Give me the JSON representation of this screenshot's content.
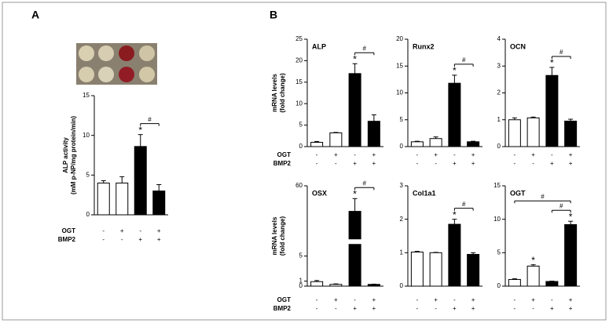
{
  "panel_labels": [
    "A",
    "B"
  ],
  "chart_data": [
    {
      "type": "bar",
      "ylabel": [
        "ALP activity",
        "(mM p-NP/mg protein/min)"
      ],
      "ylim": [
        0,
        15
      ],
      "yticks": [
        0,
        5,
        10,
        15
      ],
      "values": [
        4.0,
        4.0,
        8.6,
        3.0
      ],
      "errors": [
        0.3,
        0.8,
        1.5,
        0.8
      ],
      "colors": [
        "#ffffff",
        "#ffffff",
        "#000000",
        "#000000"
      ],
      "star_labels": [
        null,
        null,
        "*",
        null
      ],
      "brackets": [
        {
          "label": "#",
          "from": 2,
          "to": 3
        }
      ],
      "rows": [
        {
          "name": "OGT",
          "values": [
            "-",
            "+",
            "-",
            "+"
          ]
        },
        {
          "name": "BMP2",
          "values": [
            "-",
            "-",
            "+",
            "+"
          ]
        }
      ]
    },
    {
      "type": "bar",
      "title": "ALP",
      "ylabel": [
        "mRNA levels",
        "(fold change)"
      ],
      "ylim": [
        0,
        25
      ],
      "yticks": [
        0,
        5,
        10,
        15,
        20,
        25
      ],
      "values": [
        1.0,
        3.2,
        17.0,
        5.9
      ],
      "errors": [
        0.2,
        0.1,
        2.3,
        1.5
      ],
      "colors": [
        "#ffffff",
        "#ffffff",
        "#000000",
        "#000000"
      ],
      "star_labels": [
        null,
        null,
        "*",
        null
      ],
      "brackets": [
        {
          "label": "#",
          "from": 2,
          "to": 3
        }
      ],
      "rows": [
        {
          "name": "OGT",
          "values": [
            "-",
            "+",
            "-",
            "+"
          ]
        },
        {
          "name": "BMP2",
          "values": [
            "-",
            "-",
            "+",
            "+"
          ]
        }
      ]
    },
    {
      "type": "bar",
      "title": "Runx2",
      "ylim": [
        0,
        20
      ],
      "yticks": [
        0,
        5,
        10,
        15,
        20
      ],
      "values": [
        0.9,
        1.5,
        11.8,
        0.9
      ],
      "errors": [
        0.1,
        0.3,
        1.5,
        0.1
      ],
      "colors": [
        "#ffffff",
        "#ffffff",
        "#000000",
        "#000000"
      ],
      "star_labels": [
        null,
        null,
        "*",
        null
      ],
      "brackets": [
        {
          "label": "#",
          "from": 2,
          "to": 3
        }
      ],
      "rows": [
        {
          "values": [
            "-",
            "+",
            "-",
            "+"
          ]
        },
        {
          "values": [
            "-",
            "-",
            "+",
            "+"
          ]
        }
      ]
    },
    {
      "type": "bar",
      "title": "OCN",
      "ylim": [
        0,
        4
      ],
      "yticks": [
        0,
        1,
        2,
        3,
        4
      ],
      "values": [
        1.0,
        1.07,
        2.65,
        0.95
      ],
      "errors": [
        0.07,
        0.03,
        0.3,
        0.07
      ],
      "colors": [
        "#ffffff",
        "#ffffff",
        "#000000",
        "#000000"
      ],
      "star_labels": [
        null,
        null,
        "*",
        null
      ],
      "brackets": [
        {
          "label": "#",
          "from": 2,
          "to": 3
        }
      ],
      "rows": [
        {
          "values": [
            "-",
            "+",
            "-",
            "+"
          ]
        },
        {
          "values": [
            "-",
            "-",
            "+",
            "+"
          ]
        }
      ]
    },
    {
      "type": "bar",
      "title": "OSX",
      "ylabel": [
        "mRNA levels",
        "(fold change)"
      ],
      "ylim": [
        0,
        60
      ],
      "yticks": [
        0,
        1,
        5,
        60
      ],
      "broken_axis": true,
      "values": [
        0.9,
        0.35,
        40,
        0.35
      ],
      "errors": [
        0.2,
        0.1,
        10,
        0.05
      ],
      "colors": [
        "#ffffff",
        "#ffffff",
        "#000000",
        "#000000"
      ],
      "star_labels": [
        null,
        null,
        "*",
        null
      ],
      "brackets": [
        {
          "label": "#",
          "from": 2,
          "to": 3
        }
      ],
      "rows": [
        {
          "name": "OGT",
          "values": [
            "-",
            "+",
            "-",
            "+"
          ]
        },
        {
          "name": "BMP2",
          "values": [
            "-",
            "-",
            "+",
            "+"
          ]
        }
      ]
    },
    {
      "type": "bar",
      "title": "Col1a1",
      "ylim": [
        0,
        3
      ],
      "yticks": [
        0,
        1,
        2,
        3
      ],
      "values": [
        1.02,
        1.0,
        1.85,
        0.95
      ],
      "errors": [
        0.02,
        0.01,
        0.15,
        0.05
      ],
      "colors": [
        "#ffffff",
        "#ffffff",
        "#000000",
        "#000000"
      ],
      "star_labels": [
        null,
        null,
        "*",
        null
      ],
      "brackets": [
        {
          "label": "#",
          "from": 2,
          "to": 3
        }
      ],
      "rows": [
        {
          "values": [
            "-",
            "+",
            "-",
            "+"
          ]
        },
        {
          "values": [
            "-",
            "-",
            "+",
            "+"
          ]
        }
      ]
    },
    {
      "type": "bar",
      "title": "OGT",
      "ylim": [
        0,
        15
      ],
      "yticks": [
        0,
        5,
        10,
        15
      ],
      "values": [
        1.0,
        3.0,
        0.7,
        9.2
      ],
      "errors": [
        0.1,
        0.2,
        0.05,
        0.5
      ],
      "colors": [
        "#ffffff",
        "#ffffff",
        "#000000",
        "#000000"
      ],
      "star_labels": [
        null,
        "*",
        null,
        "*"
      ],
      "brackets": [
        {
          "label": "#",
          "from": 2,
          "to": 3
        },
        {
          "label": "#",
          "from": 0,
          "to": 3
        }
      ],
      "rows": [
        {
          "values": [
            "-",
            "+",
            "-",
            "+"
          ]
        },
        {
          "values": [
            "-",
            "-",
            "+",
            "+"
          ]
        }
      ]
    }
  ]
}
